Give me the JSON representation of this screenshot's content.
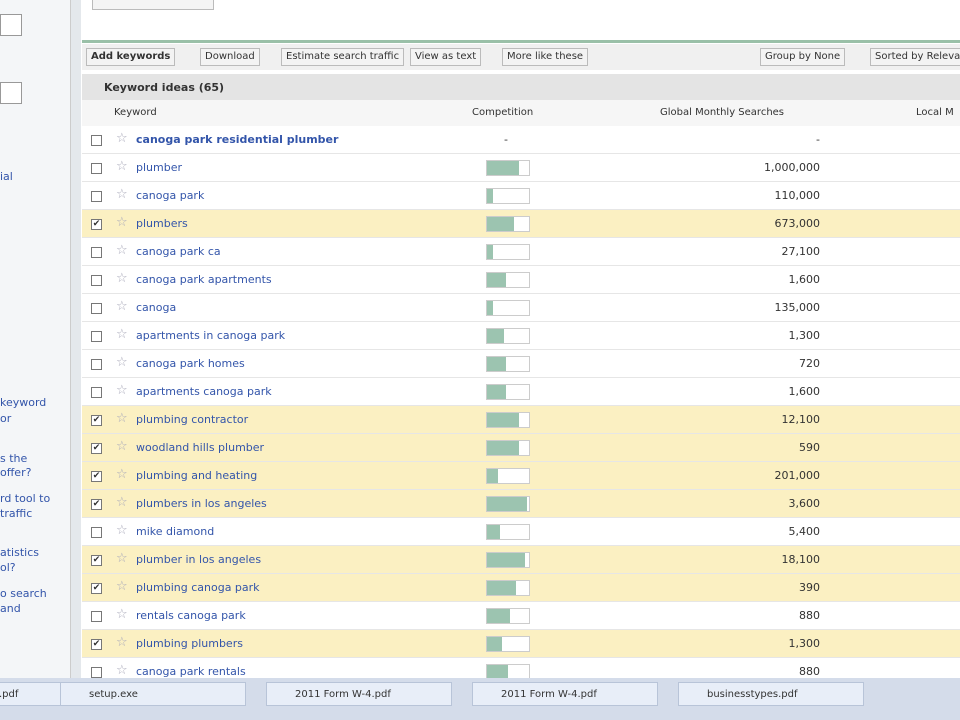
{
  "toolbar": {
    "add_keywords": "Add keywords",
    "download": "Download",
    "estimate": "Estimate search traffic",
    "view_as_text": "View as text",
    "more_like": "More like these",
    "group_by": "Group by None",
    "sorted_by": "Sorted by Relevan"
  },
  "panel_title": "Keyword ideas (65)",
  "columns": {
    "keyword": "Keyword",
    "competition": "Competition",
    "global": "Global Monthly Searches",
    "local": "Local M"
  },
  "rows": [
    {
      "keyword": "canoga park residential plumber",
      "competition": "-",
      "searches": "-",
      "checked": false
    },
    {
      "keyword": "plumber",
      "competition": 0.75,
      "searches": "1,000,000",
      "checked": false
    },
    {
      "keyword": "canoga park",
      "competition": 0.15,
      "searches": "110,000",
      "checked": false
    },
    {
      "keyword": "plumbers",
      "competition": 0.65,
      "searches": "673,000",
      "checked": true
    },
    {
      "keyword": "canoga park ca",
      "competition": 0.15,
      "searches": "27,100",
      "checked": false
    },
    {
      "keyword": "canoga park apartments",
      "competition": 0.45,
      "searches": "1,600",
      "checked": false
    },
    {
      "keyword": "canoga",
      "competition": 0.15,
      "searches": "135,000",
      "checked": false
    },
    {
      "keyword": "apartments in canoga park",
      "competition": 0.4,
      "searches": "1,300",
      "checked": false
    },
    {
      "keyword": "canoga park homes",
      "competition": 0.45,
      "searches": "720",
      "checked": false
    },
    {
      "keyword": "apartments canoga park",
      "competition": 0.45,
      "searches": "1,600",
      "checked": false
    },
    {
      "keyword": "plumbing contractor",
      "competition": 0.75,
      "searches": "12,100",
      "checked": true
    },
    {
      "keyword": "woodland hills plumber",
      "competition": 0.75,
      "searches": "590",
      "checked": true
    },
    {
      "keyword": "plumbing and heating",
      "competition": 0.25,
      "searches": "201,000",
      "checked": true
    },
    {
      "keyword": "plumbers in los angeles",
      "competition": 0.95,
      "searches": "3,600",
      "checked": true
    },
    {
      "keyword": "mike diamond",
      "competition": 0.3,
      "searches": "5,400",
      "checked": false
    },
    {
      "keyword": "plumber in los angeles",
      "competition": 0.9,
      "searches": "18,100",
      "checked": true
    },
    {
      "keyword": "plumbing canoga park",
      "competition": 0.7,
      "searches": "390",
      "checked": true
    },
    {
      "keyword": "rentals canoga park",
      "competition": 0.55,
      "searches": "880",
      "checked": false
    },
    {
      "keyword": "plumbing plumbers",
      "competition": 0.35,
      "searches": "1,300",
      "checked": true
    },
    {
      "keyword": "canoga park rentals",
      "competition": 0.5,
      "searches": "880",
      "checked": false
    }
  ],
  "sidebar": [
    "ial",
    "keyword",
    "or",
    "s the",
    "offer?",
    "rd tool to",
    "traffic",
    "atistics",
    "ol?",
    "o search",
    "and"
  ],
  "taskbar": [
    ".pdf",
    "setup.exe",
    "2011 Form W-4.pdf",
    "2011 Form W-4.pdf",
    "businesstypes.pdf"
  ]
}
